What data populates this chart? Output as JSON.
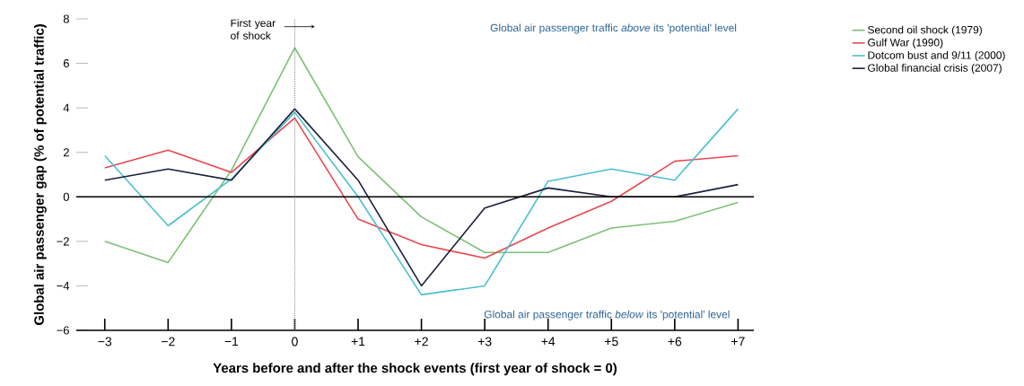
{
  "chart_data": {
    "type": "line",
    "xlabel": "Years before and after the shock events (first year of shock = 0)",
    "ylabel": "Global air passenger gap (% of potential traffic)",
    "x": [
      -3,
      -2,
      -1,
      0,
      1,
      2,
      3,
      4,
      5,
      6,
      7
    ],
    "xlim": [
      -3.45,
      7.25
    ],
    "xticks": [
      {
        "value": -3,
        "label": "−3"
      },
      {
        "value": -2,
        "label": "−2"
      },
      {
        "value": -1,
        "label": "−1"
      },
      0,
      {
        "value": 1,
        "label": "+1"
      },
      {
        "value": 2,
        "label": "+2"
      },
      {
        "value": 3,
        "label": "+3"
      },
      {
        "value": 4,
        "label": "+4"
      },
      {
        "value": 5,
        "label": "+5"
      },
      {
        "value": 6,
        "label": "+6"
      },
      {
        "value": 7,
        "label": "+7"
      }
    ],
    "ylim": [
      -6,
      8
    ],
    "yticks": [
      {
        "value": -6,
        "label": "−6"
      },
      {
        "value": -4,
        "label": "−4"
      },
      {
        "value": -2,
        "label": "−2"
      },
      0,
      2,
      4,
      6,
      8
    ],
    "series": [
      {
        "name": "Second oil shock (1979)",
        "color": "#7dbf78",
        "values": [
          -2.0,
          -2.95,
          1.2,
          6.7,
          1.8,
          -0.9,
          -2.5,
          -2.5,
          -1.4,
          -1.1,
          -0.25
        ]
      },
      {
        "name": "Gulf War (1990)",
        "color": "#e8474f",
        "values": [
          1.3,
          2.1,
          1.1,
          3.55,
          -1.0,
          -2.15,
          -2.75,
          -1.4,
          -0.2,
          1.6,
          1.85
        ]
      },
      {
        "name": "Dotcom bust and 9/11 (2000)",
        "color": "#4bbfcf",
        "values": [
          1.85,
          -1.3,
          0.8,
          3.8,
          0.0,
          -4.4,
          -4.0,
          0.7,
          1.25,
          0.75,
          3.95
        ]
      },
      {
        "name": "Global financial crisis (2007)",
        "color": "#1a1f3d",
        "values": [
          0.75,
          1.25,
          0.75,
          3.95,
          0.75,
          -4.0,
          -0.5,
          0.4,
          0.0,
          0.0,
          0.55
        ]
      }
    ],
    "ref_lines": [
      {
        "axis": "y",
        "value": 0,
        "color": "#000000",
        "line_style": "solid"
      },
      {
        "axis": "x",
        "value": 0,
        "color": "#888888",
        "line_style": "dotted"
      }
    ],
    "annotations": [
      "First year of shock",
      "Global air passenger traffic *above* its 'potential' level",
      "Global air passenger traffic *below* its 'potential' level"
    ],
    "legend": "top right",
    "grid": false,
    "marker": "none",
    "line_style": "solid"
  }
}
